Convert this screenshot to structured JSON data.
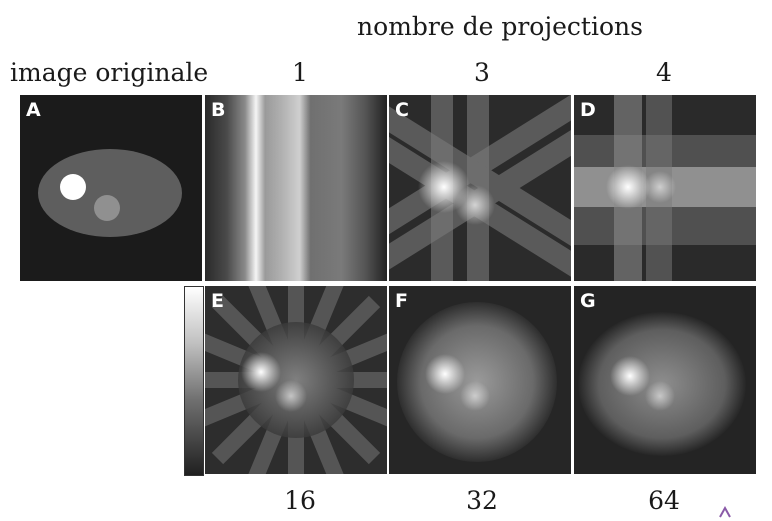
{
  "header": "nombre de projections",
  "original_label": "image originale",
  "top_counts": [
    "1",
    "3",
    "4"
  ],
  "bottom_counts": [
    "16",
    "32",
    "64"
  ],
  "panels": {
    "a": "A",
    "b": "B",
    "c": "C",
    "d": "D",
    "e": "E",
    "f": "F",
    "g": "G"
  }
}
